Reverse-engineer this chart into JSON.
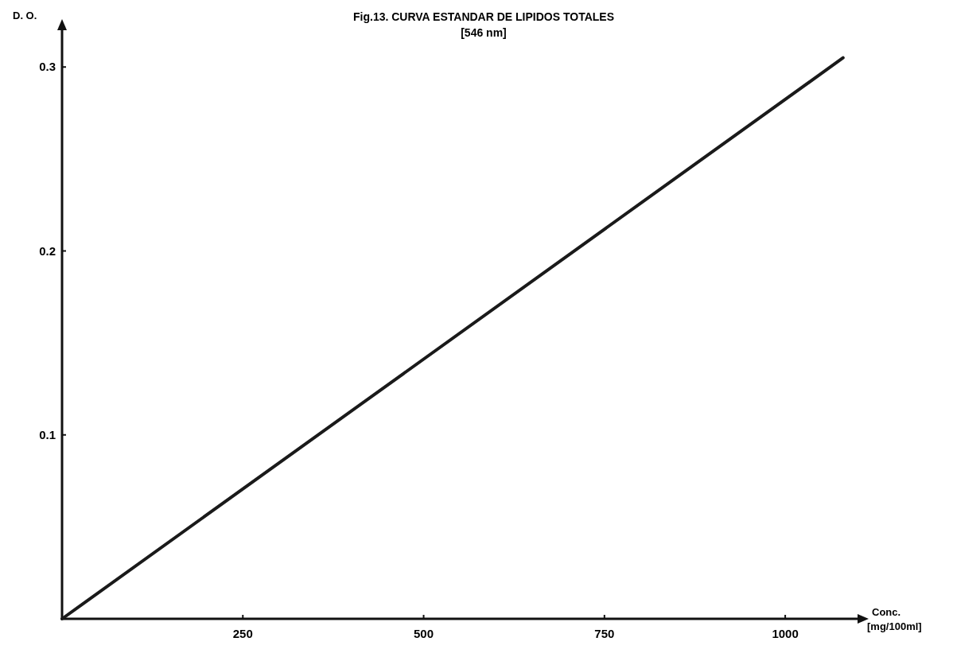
{
  "chart_data": {
    "type": "line",
    "title": "Fig.13. CURVA ESTANDAR DE LIPIDOS TOTALES",
    "subtitle": "[546 nm]",
    "xlabel": "Conc. [mg/100ml]",
    "ylabel": "D. O.",
    "x": [
      0,
      1080
    ],
    "series": [
      {
        "color": "#1a1a1a",
        "values": [
          0,
          0.305
        ]
      }
    ],
    "xlim": [
      0,
      1100
    ],
    "ylim": [
      0,
      0.32
    ],
    "xticks": [
      250,
      500,
      750,
      1000
    ],
    "yticks": [
      0.1,
      0.2,
      0.3
    ],
    "grid": false,
    "marker": "none",
    "line_style": "solid"
  }
}
